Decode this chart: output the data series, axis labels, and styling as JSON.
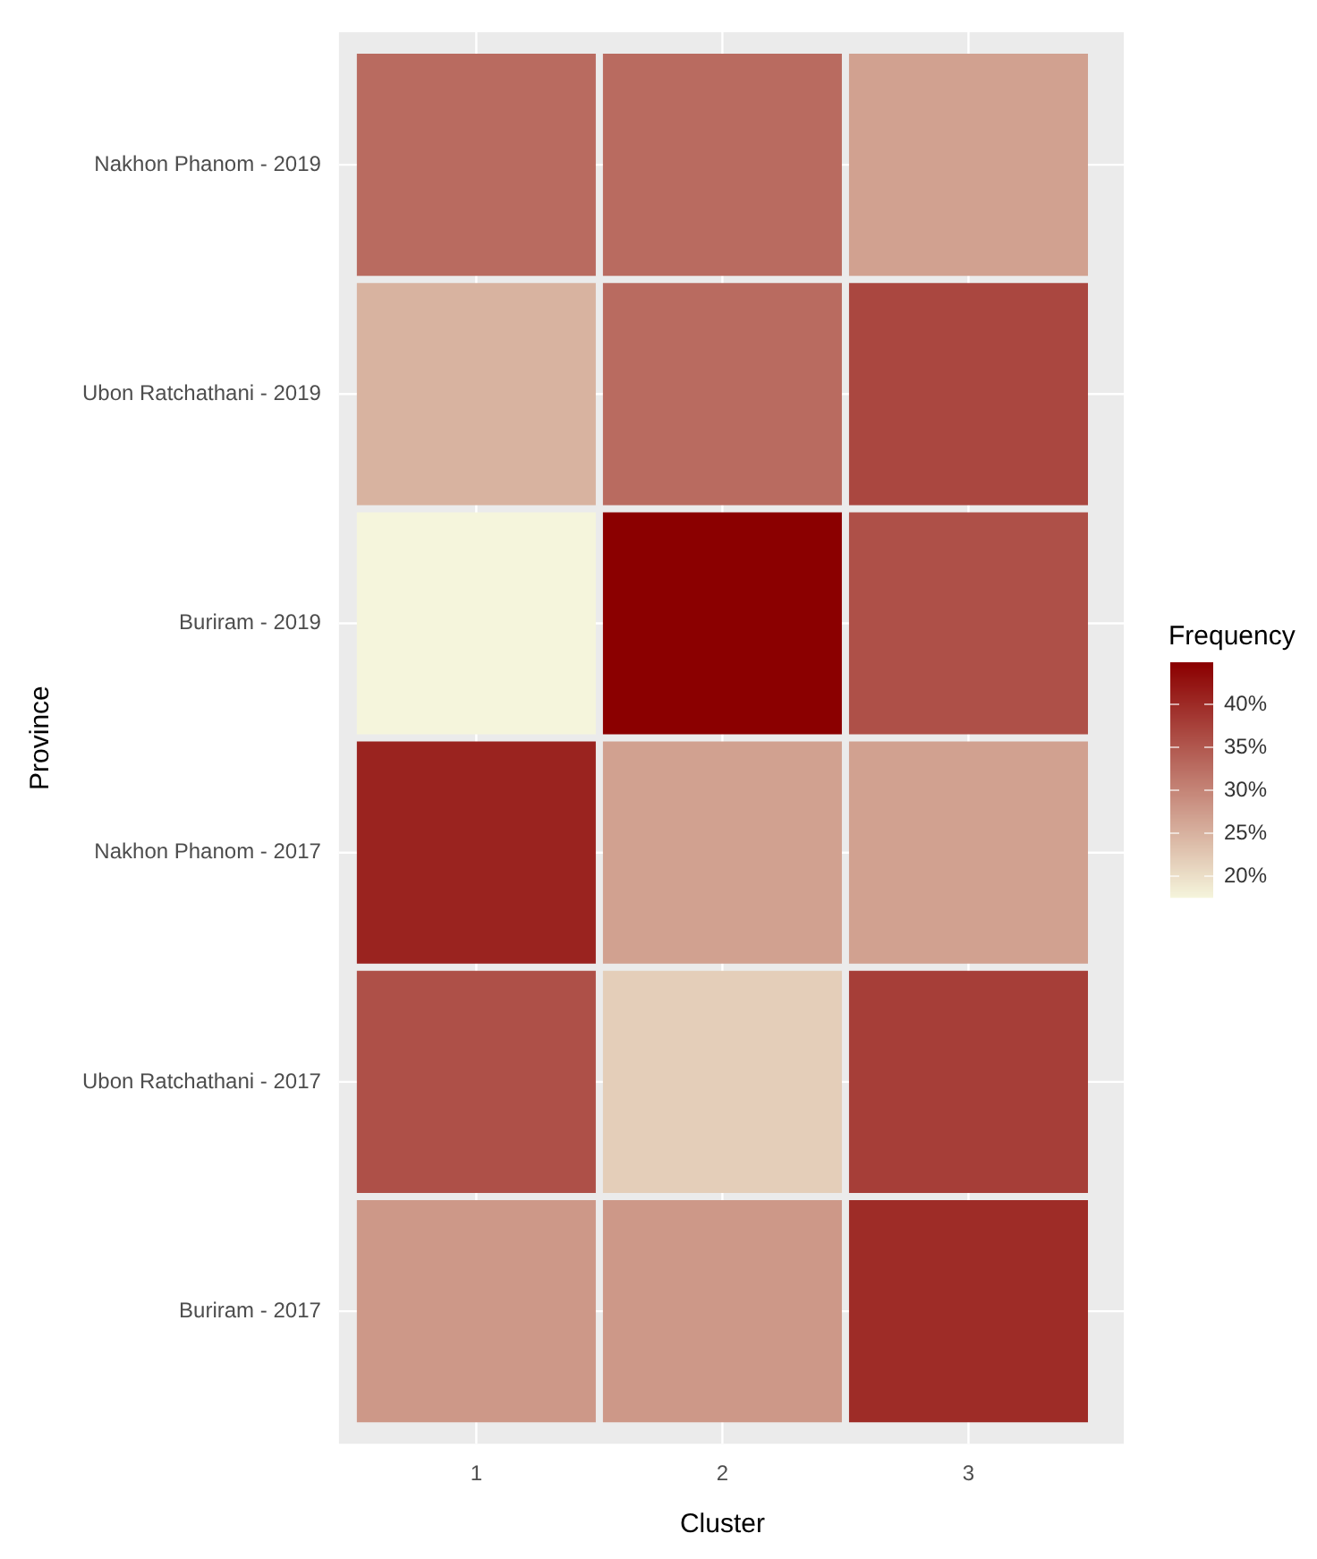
{
  "chart_data": {
    "type": "heatmap",
    "xlabel": "Cluster",
    "ylabel": "Province",
    "legend_title": "Frequency",
    "categories": [
      "1",
      "2",
      "3"
    ],
    "y_categories": [
      "Nakhon Phanom - 2019",
      "Ubon Ratchathani - 2019",
      "Buriram - 2019",
      "Nakhon Phanom - 2017",
      "Ubon Ratchathani - 2017",
      "Buriram - 2017"
    ],
    "cells": [
      [
        33,
        33,
        27
      ],
      [
        25,
        33,
        37
      ],
      [
        17.6,
        44.9,
        36
      ],
      [
        41,
        27,
        27
      ],
      [
        36,
        22,
        38
      ],
      [
        28,
        28,
        40
      ]
    ],
    "clim": [
      17.6,
      44.9
    ],
    "cticks": [
      {
        "value": 20,
        "label": "20%"
      },
      {
        "value": 25,
        "label": "25%"
      },
      {
        "value": 30,
        "label": "30%"
      },
      {
        "value": 35,
        "label": "35%"
      },
      {
        "value": 40,
        "label": "40%"
      }
    ],
    "colors": [
      "#f5f5dc",
      "#8b0000"
    ],
    "grid": true
  }
}
